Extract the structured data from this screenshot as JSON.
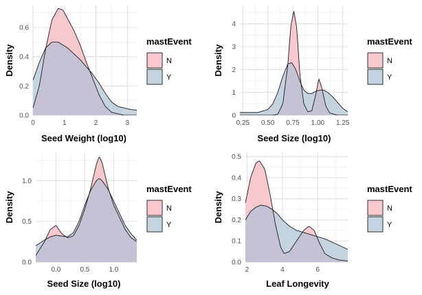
{
  "colors": {
    "N": "#f8c8cf",
    "Y": "#c3d3e0",
    "overlap": "#c6c2d6",
    "grid": "#ebebeb",
    "line": "#1a1a1a"
  },
  "legend_title": "mastEvent",
  "legend_labels": [
    "N",
    "Y"
  ],
  "chart_data": [
    {
      "type": "area",
      "xlabel": "Seed Weight (log10)",
      "ylabel": "Density",
      "xlim": [
        0,
        3.3
      ],
      "ylim": [
        0,
        0.75
      ],
      "xticks": [
        0,
        1,
        2,
        3
      ],
      "yticks": [
        0.0,
        0.2,
        0.4,
        0.6
      ],
      "ytick_labels": [
        "0.0",
        "0.2",
        "0.4",
        "0.6"
      ],
      "grid": true,
      "legend": "right",
      "series": [
        {
          "name": "N",
          "x": [
            0,
            0.2,
            0.4,
            0.6,
            0.8,
            0.95,
            1.1,
            1.3,
            1.5,
            1.7,
            1.9,
            2.1,
            2.3,
            2.5,
            2.7,
            2.9,
            3.1,
            3.3
          ],
          "y": [
            0.05,
            0.2,
            0.45,
            0.65,
            0.73,
            0.72,
            0.66,
            0.58,
            0.48,
            0.36,
            0.25,
            0.14,
            0.06,
            0.02,
            0.01,
            0,
            0,
            0
          ]
        },
        {
          "name": "Y",
          "x": [
            0,
            0.2,
            0.4,
            0.6,
            0.8,
            0.95,
            1.1,
            1.3,
            1.5,
            1.7,
            1.9,
            2.1,
            2.3,
            2.5,
            2.7,
            2.9,
            3.1,
            3.3
          ],
          "y": [
            0.24,
            0.36,
            0.46,
            0.5,
            0.5,
            0.48,
            0.46,
            0.42,
            0.38,
            0.33,
            0.28,
            0.22,
            0.15,
            0.09,
            0.06,
            0.05,
            0.04,
            0.035
          ]
        }
      ]
    },
    {
      "type": "area",
      "xlabel": "Seed Size (log10)",
      "ylabel": "Density",
      "xlim": [
        0.22,
        1.3
      ],
      "ylim": [
        0,
        4.8
      ],
      "xticks": [
        0.25,
        0.5,
        0.75,
        1.0,
        1.25
      ],
      "xtick_labels": [
        "0.25",
        "0.50",
        "0.75",
        "1.00",
        "1.25"
      ],
      "yticks": [
        0,
        1,
        2,
        3,
        4
      ],
      "grid": true,
      "legend": "right",
      "series": [
        {
          "name": "N",
          "x": [
            0.25,
            0.55,
            0.6,
            0.65,
            0.7,
            0.73,
            0.76,
            0.79,
            0.82,
            0.86,
            0.9,
            0.94,
            0.98,
            1.01,
            1.04,
            1.08,
            1.12,
            1.2,
            1.3
          ],
          "y": [
            0,
            0,
            0.05,
            0.5,
            2.2,
            3.9,
            4.55,
            3.8,
            1.8,
            0.5,
            0.15,
            0.2,
            0.9,
            1.6,
            1.2,
            0.4,
            0.1,
            0,
            0
          ]
        },
        {
          "name": "Y",
          "x": [
            0.25,
            0.4,
            0.5,
            0.55,
            0.6,
            0.65,
            0.7,
            0.74,
            0.78,
            0.82,
            0.86,
            0.9,
            0.94,
            0.98,
            1.02,
            1.06,
            1.1,
            1.15,
            1.2,
            1.25,
            1.3
          ],
          "y": [
            0.12,
            0.12,
            0.25,
            0.5,
            1.0,
            1.7,
            2.25,
            2.3,
            2.0,
            1.5,
            1.1,
            0.95,
            0.95,
            1.05,
            1.1,
            1.1,
            1.0,
            0.8,
            0.55,
            0.3,
            0.15
          ]
        }
      ]
    },
    {
      "type": "area",
      "xlabel": "Seed Size (log10)",
      "ylabel": "Density",
      "xlim": [
        -0.35,
        1.4
      ],
      "ylim": [
        0,
        1.35
      ],
      "xticks": [
        0,
        0.5,
        1
      ],
      "xtick_labels": [
        "0.0",
        "0.5",
        "1.0"
      ],
      "yticks": [
        0,
        0.5,
        1
      ],
      "ytick_labels": [
        "0.0",
        "0.5",
        "1.0"
      ],
      "grid": true,
      "legend": "right",
      "series": [
        {
          "name": "N",
          "x": [
            -0.35,
            -0.2,
            -0.1,
            0,
            0.1,
            0.2,
            0.3,
            0.4,
            0.5,
            0.6,
            0.7,
            0.75,
            0.8,
            0.9,
            1.0,
            1.1,
            1.2,
            1.3,
            1.4
          ],
          "y": [
            0.08,
            0.25,
            0.4,
            0.45,
            0.35,
            0.3,
            0.32,
            0.45,
            0.65,
            0.9,
            1.2,
            1.3,
            1.22,
            0.92,
            0.7,
            0.55,
            0.4,
            0.3,
            0.25
          ]
        },
        {
          "name": "Y",
          "x": [
            -0.35,
            -0.2,
            -0.1,
            0,
            0.1,
            0.2,
            0.3,
            0.4,
            0.5,
            0.6,
            0.7,
            0.75,
            0.8,
            0.9,
            1.0,
            1.1,
            1.2,
            1.3,
            1.4
          ],
          "y": [
            0.2,
            0.27,
            0.31,
            0.33,
            0.32,
            0.31,
            0.36,
            0.5,
            0.7,
            0.88,
            1.0,
            1.03,
            1.0,
            0.9,
            0.75,
            0.6,
            0.45,
            0.35,
            0.27
          ]
        }
      ]
    },
    {
      "type": "area",
      "xlabel": "Leaf Longevity",
      "ylabel": "Density",
      "xlim": [
        1.9,
        7.7
      ],
      "ylim": [
        0,
        0.52
      ],
      "xticks": [
        2,
        4,
        6
      ],
      "yticks": [
        0.0,
        0.1,
        0.2,
        0.3,
        0.4,
        0.5
      ],
      "ytick_labels": [
        "0.0",
        "0.1",
        "0.2",
        "0.3",
        "0.4",
        "0.5"
      ],
      "grid": true,
      "legend": "right",
      "series": [
        {
          "name": "N",
          "x": [
            1.9,
            2.2,
            2.5,
            2.7,
            3.0,
            3.3,
            3.6,
            3.9,
            4.1,
            4.4,
            4.8,
            5.2,
            5.5,
            5.8,
            6.1,
            6.4,
            6.8,
            7.2,
            7.7
          ],
          "y": [
            0.28,
            0.4,
            0.47,
            0.48,
            0.44,
            0.32,
            0.18,
            0.07,
            0.04,
            0.05,
            0.1,
            0.15,
            0.17,
            0.15,
            0.09,
            0.04,
            0.02,
            0.01,
            0.005
          ]
        },
        {
          "name": "Y",
          "x": [
            1.9,
            2.2,
            2.5,
            2.8,
            3.1,
            3.4,
            3.7,
            4.0,
            4.4,
            4.8,
            5.2,
            5.6,
            6.0,
            6.4,
            6.8,
            7.2,
            7.7
          ],
          "y": [
            0.2,
            0.24,
            0.26,
            0.27,
            0.265,
            0.25,
            0.23,
            0.2,
            0.17,
            0.15,
            0.14,
            0.13,
            0.12,
            0.11,
            0.095,
            0.08,
            0.06
          ]
        }
      ]
    }
  ]
}
